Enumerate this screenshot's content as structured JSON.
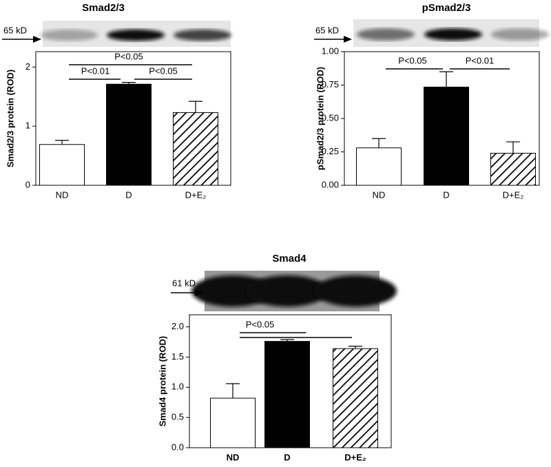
{
  "chart_data": [
    {
      "type": "bar",
      "title": "Smad2/3",
      "band_label": "65 kD",
      "ylabel": "Smad2/3 protein (ROD)",
      "categories": [
        "ND",
        "D",
        "D+E₂"
      ],
      "values": [
        0.69,
        1.71,
        1.23
      ],
      "errors": [
        0.07,
        0.03,
        0.19
      ],
      "fills": [
        "white",
        "black",
        "hatch"
      ],
      "ylim": [
        0,
        2.26
      ],
      "yticks": [
        0,
        1,
        2
      ],
      "annotations": [
        {
          "text": "P<0.05",
          "from": 0,
          "to": [
            2
          ]
        },
        {
          "text": "P<0.01",
          "from": 0,
          "to": [
            1
          ]
        },
        {
          "text": "P<0.05",
          "from": 1,
          "to": [
            2
          ]
        }
      ]
    },
    {
      "type": "bar",
      "title": "pSmad2/3",
      "band_label": "65 kD",
      "ylabel": "pSmad2/3 protein (ROD)",
      "categories": [
        "ND",
        "D",
        "D+E₂"
      ],
      "values": [
        0.28,
        0.735,
        0.24
      ],
      "errors": [
        0.07,
        0.115,
        0.085
      ],
      "fills": [
        "white",
        "black",
        "hatch"
      ],
      "ylim": [
        0,
        1
      ],
      "yticks": [
        {
          "value": 0,
          "label": "0.00"
        },
        0.25,
        {
          "value": 0.5,
          "label": "0.50"
        },
        0.75,
        {
          "value": 1,
          "label": "1.00"
        }
      ],
      "annotations": [
        {
          "text": "P<0.05",
          "from": 0,
          "to": [
            1
          ]
        },
        {
          "text": "P<0.01",
          "from": 1,
          "to": [
            2
          ]
        }
      ]
    },
    {
      "type": "bar",
      "title": "Smad4",
      "band_label": "61 kD",
      "ylabel": "Smad4 protein (ROD)",
      "categories": [
        "ND",
        "D",
        "D+E₂"
      ],
      "values": [
        0.82,
        1.76,
        1.64
      ],
      "errors": [
        0.24,
        0.03,
        0.04
      ],
      "fills": [
        "white",
        "black",
        "hatch"
      ],
      "ylim": [
        0,
        2.2
      ],
      "yticks": [
        {
          "value": 0,
          "label": "0.0"
        },
        0.5,
        {
          "value": 1,
          "label": "1.0"
        },
        1.5,
        {
          "value": 2,
          "label": "2.0"
        }
      ],
      "annotations": [
        {
          "text": "P<0.05",
          "from": 0,
          "to": [
            1,
            2
          ]
        }
      ]
    }
  ]
}
